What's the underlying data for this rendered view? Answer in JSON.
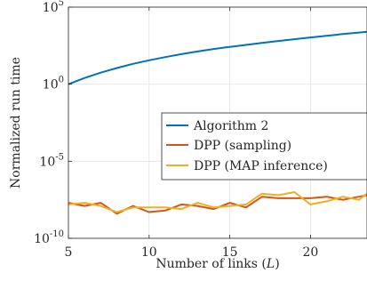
{
  "chart_data": {
    "type": "line",
    "xlabel": "Number of links (L)",
    "ylabel": "Normalized run time",
    "xlim": [
      5,
      23.5
    ],
    "ylim": [
      -10,
      5
    ],
    "y_scale": "log10",
    "grid": true,
    "legend_position": "middle-right",
    "x_ticks": [
      5,
      10,
      15,
      20
    ],
    "y_ticks": [
      {
        "exp": -10,
        "label": "10",
        "sup": "-10"
      },
      {
        "exp": -5,
        "label": "10",
        "sup": "-5"
      },
      {
        "exp": 0,
        "label": "10",
        "sup": "0"
      },
      {
        "exp": 5,
        "label": "10",
        "sup": "5"
      }
    ],
    "x": [
      5,
      6,
      7,
      8,
      9,
      10,
      11,
      12,
      13,
      14,
      15,
      16,
      17,
      18,
      19,
      20,
      21,
      22,
      23,
      23.5
    ],
    "series": [
      {
        "name": "Algorithm 2",
        "color": "#0072BD",
        "y_log10": [
          0.0,
          0.4,
          0.75,
          1.05,
          1.32,
          1.55,
          1.76,
          1.95,
          2.12,
          2.28,
          2.42,
          2.55,
          2.68,
          2.8,
          2.92,
          3.03,
          3.14,
          3.25,
          3.35,
          3.4
        ]
      },
      {
        "name": "DPP (sampling)",
        "color": "#D95319",
        "y_log10": [
          -7.7,
          -7.9,
          -7.7,
          -8.4,
          -7.9,
          -8.3,
          -8.2,
          -7.8,
          -7.9,
          -8.1,
          -7.7,
          -8.0,
          -7.3,
          -7.4,
          -7.4,
          -7.4,
          -7.3,
          -7.5,
          -7.3,
          -7.2
        ]
      },
      {
        "name": "DPP (MAP inference)",
        "color": "#EDB120",
        "y_log10": [
          -7.8,
          -7.7,
          -7.9,
          -8.3,
          -8.0,
          -8.0,
          -8.0,
          -8.1,
          -7.7,
          -8.0,
          -7.9,
          -7.8,
          -7.1,
          -7.2,
          -7.0,
          -7.8,
          -7.6,
          -7.3,
          -7.5,
          -7.1
        ]
      }
    ]
  }
}
